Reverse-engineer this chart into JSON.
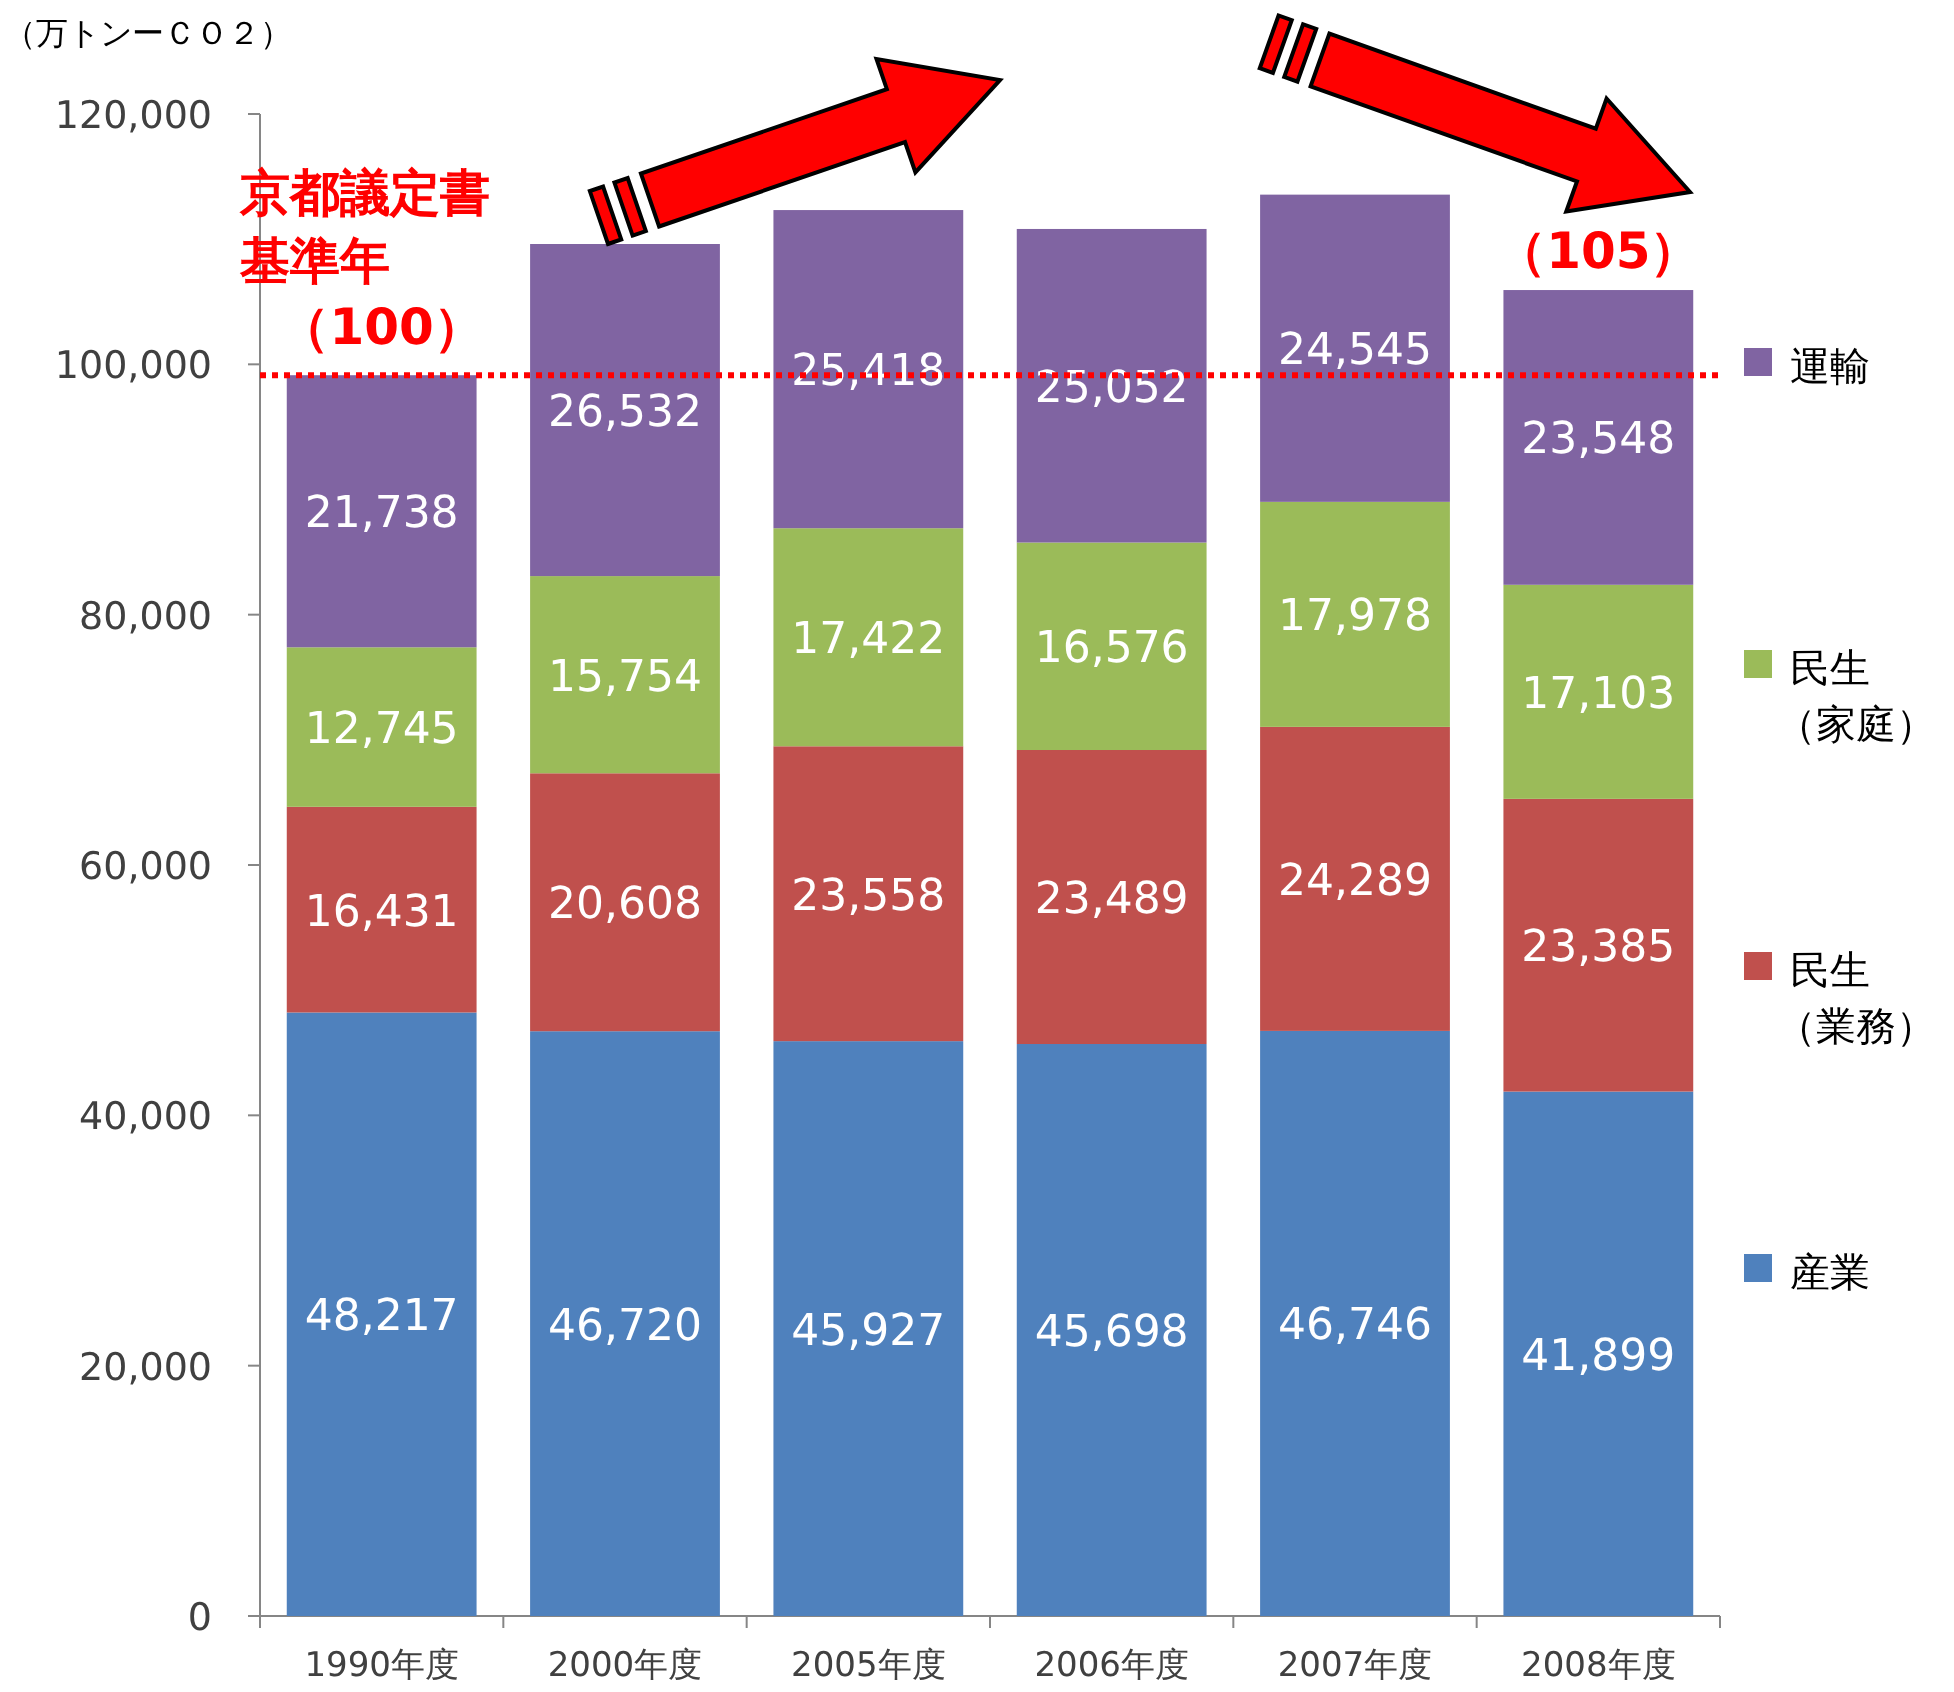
{
  "chart_data": {
    "type": "bar",
    "stacked": true,
    "ylabel": "（万トンーＣＯ２）",
    "categories": [
      "1990年度",
      "2000年度",
      "2005年度",
      "2006年度",
      "2007年度",
      "2008年度"
    ],
    "series": [
      {
        "name": "産業",
        "color": "#4f81bd",
        "values": [
          48217,
          46720,
          45927,
          45698,
          46746,
          41899
        ],
        "value_labels": [
          "48,217",
          "46,720",
          "45,927",
          "45,698",
          "46,746",
          "41,899"
        ]
      },
      {
        "name": "民生（業務）",
        "color": "#c0504d",
        "values": [
          16431,
          20608,
          23558,
          23489,
          24289,
          23385
        ],
        "value_labels": [
          "16,431",
          "20,608",
          "23,558",
          "23,489",
          "24,289",
          "23,385"
        ]
      },
      {
        "name": "民生（家庭）",
        "color": "#9bbb59",
        "values": [
          12745,
          15754,
          17422,
          16576,
          17978,
          17103
        ],
        "value_labels": [
          "12,745",
          "15,754",
          "17,422",
          "16,576",
          "17,978",
          "17,103"
        ]
      },
      {
        "name": "運輸",
        "color": "#8064a2",
        "values": [
          21738,
          26532,
          25418,
          25052,
          24545,
          23548
        ],
        "value_labels": [
          "21,738",
          "26,532",
          "25,418",
          "25,052",
          "24,545",
          "23,548"
        ]
      }
    ],
    "ylim": [
      0,
      120000
    ],
    "yticks": [
      {
        "value": 0,
        "label": "0"
      },
      {
        "value": 20000,
        "label": "20,000"
      },
      {
        "value": 40000,
        "label": "40,000"
      },
      {
        "value": 60000,
        "label": "60,000"
      },
      {
        "value": 80000,
        "label": "80,000"
      },
      {
        "value": 100000,
        "label": "100,000"
      },
      {
        "value": 120000,
        "label": "120,000"
      }
    ],
    "legend": "right",
    "grid": false,
    "ref_lines": [
      {
        "axis": "y",
        "value": 99131,
        "color": "#ff0000",
        "line_style": "dotted"
      }
    ],
    "annotations": [
      "京都議定書基準年",
      "（100）",
      "（105）"
    ]
  }
}
